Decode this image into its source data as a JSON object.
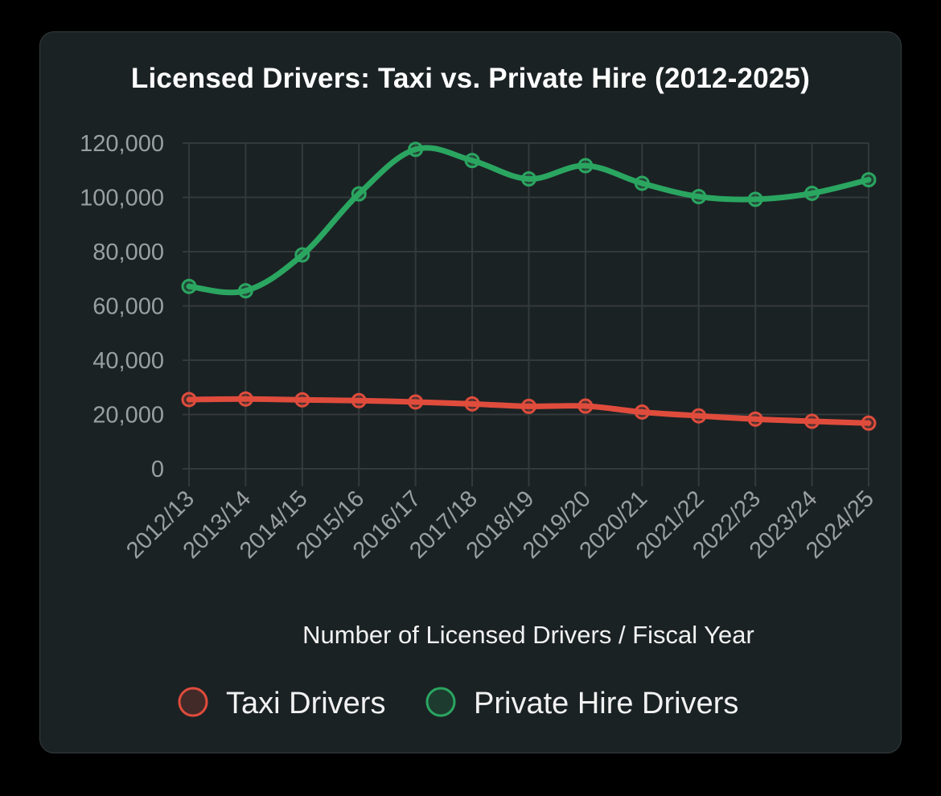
{
  "chart_data": {
    "type": "line",
    "title": "Licensed Drivers: Taxi vs. Private Hire (2012-2025)",
    "xlabel": "Number of Licensed Drivers / Fiscal Year",
    "ylabel": "",
    "categories": [
      "2012/13",
      "2013/14",
      "2014/15",
      "2015/16",
      "2016/17",
      "2017/18",
      "2018/19",
      "2019/20",
      "2020/21",
      "2021/22",
      "2022/23",
      "2023/24",
      "2024/25"
    ],
    "ylim": [
      0,
      120000
    ],
    "yticks": [
      0,
      20000,
      40000,
      60000,
      80000,
      100000,
      120000
    ],
    "ytick_labels": [
      "0",
      "20,000",
      "40,000",
      "60,000",
      "80,000",
      "100,000",
      "120,000"
    ],
    "grid": true,
    "legend_position": "bottom",
    "series": [
      {
        "name": "Taxi Drivers",
        "color": "#e04c3c",
        "values": [
          25500,
          25700,
          25400,
          25100,
          24600,
          23900,
          23000,
          23100,
          20900,
          19500,
          18300,
          17500,
          16800
        ]
      },
      {
        "name": "Private Hire Drivers",
        "color": "#2aa661",
        "values": [
          67200,
          65600,
          78800,
          101300,
          117700,
          113600,
          106800,
          111700,
          105200,
          100300,
          99300,
          101500,
          106500
        ]
      }
    ]
  }
}
